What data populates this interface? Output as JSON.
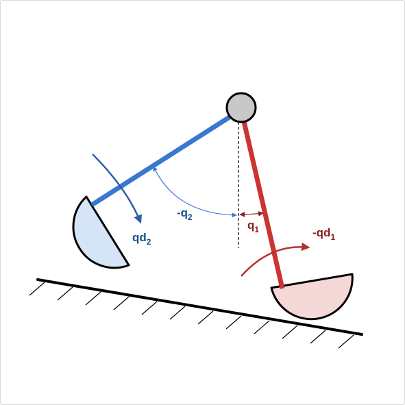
{
  "colors": {
    "stance_leg": "#cc3333",
    "swing_leg": "#3a78cf",
    "stance_foot_fill": "#f4d8d8",
    "swing_foot_fill": "#d6e4f8",
    "hip_fill": "#c8c8c8",
    "swing_label": "#1f4e8c",
    "stance_label": "#8b1f1f",
    "ground": "#000000"
  },
  "labels": {
    "q2": {
      "main": "-q",
      "sub": "2"
    },
    "q1": {
      "main": "q",
      "sub": "1"
    },
    "qd2": {
      "main": "qd",
      "sub": "2"
    },
    "qd1": {
      "main": "-qd",
      "sub": "1"
    }
  }
}
